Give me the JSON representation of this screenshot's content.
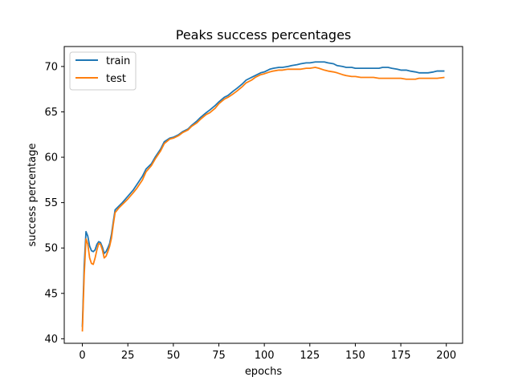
{
  "chart_data": {
    "type": "line",
    "title": "Peaks success percentages",
    "xlabel": "epochs",
    "ylabel": "success percentage",
    "xlim": [
      -9.95,
      208.95
    ],
    "ylim": [
      39.5,
      72.2
    ],
    "xticks": [
      0,
      25,
      50,
      75,
      100,
      125,
      150,
      175,
      200
    ],
    "yticks": [
      40,
      45,
      50,
      55,
      60,
      65,
      70
    ],
    "grid": false,
    "legend_position": "top-left",
    "x": [
      0,
      1,
      2,
      3,
      4,
      5,
      6,
      7,
      8,
      9,
      10,
      11,
      12,
      13,
      14,
      15,
      16,
      17,
      18,
      20,
      22,
      25,
      28,
      30,
      33,
      35,
      38,
      40,
      43,
      45,
      48,
      50,
      53,
      55,
      58,
      60,
      63,
      65,
      68,
      70,
      73,
      75,
      78,
      80,
      83,
      85,
      88,
      90,
      93,
      95,
      98,
      100,
      103,
      105,
      108,
      110,
      113,
      115,
      118,
      120,
      123,
      125,
      128,
      130,
      133,
      135,
      138,
      140,
      143,
      145,
      148,
      150,
      153,
      155,
      158,
      160,
      163,
      165,
      168,
      170,
      173,
      175,
      178,
      180,
      183,
      185,
      188,
      190,
      193,
      195,
      199
    ],
    "series": [
      {
        "name": "train",
        "color": "#1f77b4",
        "values": [
          41.3,
          48.0,
          51.8,
          51.3,
          50.2,
          49.7,
          49.6,
          49.8,
          50.4,
          50.7,
          50.6,
          50.1,
          49.4,
          49.6,
          50.0,
          50.5,
          51.5,
          52.9,
          54.2,
          54.6,
          55.0,
          55.7,
          56.4,
          57.0,
          57.9,
          58.7,
          59.3,
          60.0,
          60.9,
          61.7,
          62.1,
          62.2,
          62.5,
          62.8,
          63.1,
          63.5,
          64.0,
          64.4,
          64.9,
          65.2,
          65.7,
          66.1,
          66.6,
          66.8,
          67.3,
          67.6,
          68.1,
          68.5,
          68.8,
          69.0,
          69.3,
          69.4,
          69.7,
          69.8,
          69.9,
          69.9,
          70.0,
          70.1,
          70.2,
          70.3,
          70.4,
          70.4,
          70.5,
          70.5,
          70.5,
          70.4,
          70.3,
          70.1,
          70.0,
          69.9,
          69.9,
          69.8,
          69.8,
          69.8,
          69.8,
          69.8,
          69.8,
          69.9,
          69.9,
          69.8,
          69.7,
          69.6,
          69.6,
          69.5,
          69.4,
          69.3,
          69.3,
          69.3,
          69.4,
          69.5,
          69.5
        ]
      },
      {
        "name": "test",
        "color": "#ff7f0e",
        "values": [
          40.8,
          47.0,
          51.0,
          50.4,
          48.9,
          48.3,
          48.2,
          48.9,
          49.8,
          50.5,
          50.4,
          49.8,
          48.9,
          49.1,
          49.6,
          50.2,
          51.1,
          52.6,
          53.9,
          54.4,
          54.8,
          55.4,
          56.1,
          56.6,
          57.5,
          58.4,
          59.1,
          59.8,
          60.7,
          61.5,
          62.0,
          62.1,
          62.4,
          62.7,
          63.0,
          63.4,
          63.8,
          64.2,
          64.7,
          64.9,
          65.4,
          65.9,
          66.4,
          66.6,
          67.0,
          67.3,
          67.8,
          68.2,
          68.5,
          68.8,
          69.1,
          69.2,
          69.4,
          69.5,
          69.6,
          69.6,
          69.7,
          69.7,
          69.7,
          69.7,
          69.8,
          69.8,
          69.9,
          69.8,
          69.6,
          69.5,
          69.4,
          69.3,
          69.1,
          69.0,
          68.9,
          68.9,
          68.8,
          68.8,
          68.8,
          68.8,
          68.7,
          68.7,
          68.7,
          68.7,
          68.7,
          68.7,
          68.6,
          68.6,
          68.6,
          68.7,
          68.7,
          68.7,
          68.7,
          68.7,
          68.8
        ]
      }
    ]
  }
}
